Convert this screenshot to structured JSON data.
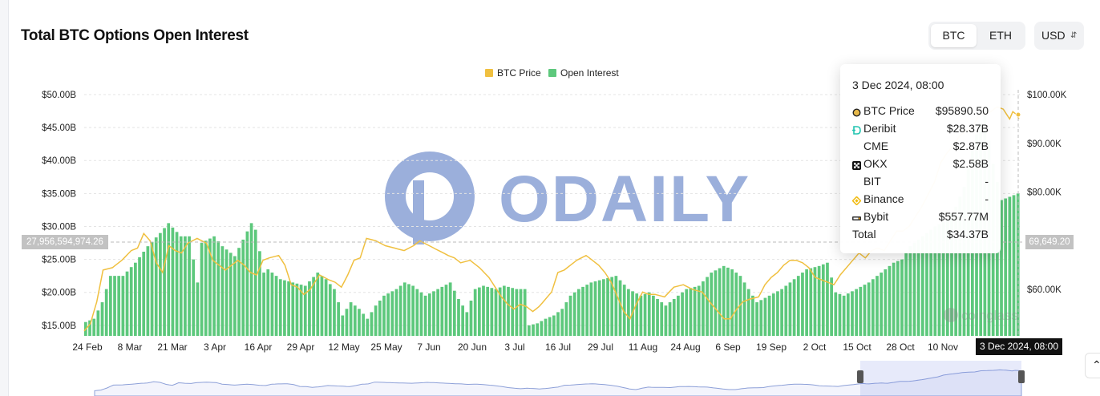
{
  "header": {
    "title": "Total BTC Options Open Interest"
  },
  "toggle": {
    "options": [
      "BTC",
      "ETH"
    ],
    "active": "BTC"
  },
  "currency": {
    "value": "USD"
  },
  "legend": [
    {
      "label": "BTC Price",
      "color": "#f0c040"
    },
    {
      "label": "Open Interest",
      "color": "#5dc87c"
    }
  ],
  "watermark": {
    "brand": "ODAILY",
    "source": "coinglass"
  },
  "crosshair": {
    "left_value": "27,956,594,974.26",
    "right_value": "69,649.20",
    "date_label": "3 Dec 2024, 08:00"
  },
  "tooltip": {
    "date": "3 Dec 2024, 08:00",
    "rows": [
      {
        "icon": "btc-dot-icon",
        "label": "BTC Price",
        "value": "$95890.50"
      },
      {
        "icon": "deribit-icon",
        "label": "Deribit",
        "value": "$28.37B"
      },
      {
        "icon": "",
        "label": "CME",
        "value": "$2.87B"
      },
      {
        "icon": "okx-icon",
        "label": "OKX",
        "value": "$2.58B"
      },
      {
        "icon": "",
        "label": "BIT",
        "value": "-"
      },
      {
        "icon": "binance-icon",
        "label": "Binance",
        "value": "-"
      },
      {
        "icon": "bybit-icon",
        "label": "Bybit",
        "value": "$557.77M"
      },
      {
        "icon": "",
        "label": "Total",
        "value": "$34.37B"
      }
    ]
  },
  "chart_data": {
    "type": "bar",
    "title": "Total BTC Options Open Interest",
    "x_tick_labels": [
      "24 Feb",
      "8 Mar",
      "21 Mar",
      "3 Apr",
      "16 Apr",
      "29 Apr",
      "12 May",
      "25 May",
      "7 Jun",
      "20 Jun",
      "3 Jul",
      "16 Jul",
      "29 Jul",
      "11 Aug",
      "24 Aug",
      "6 Sep",
      "19 Sep",
      "2 Oct",
      "15 Oct",
      "28 Oct",
      "10 Nov",
      "3 Dec 2024, 08:00"
    ],
    "y_left": {
      "ticks": [
        "$15.00B",
        "$20.00B",
        "$25.00B",
        "$30.00B",
        "$35.00B",
        "$40.00B",
        "$45.00B",
        "$50.00B"
      ],
      "values": [
        15,
        20,
        25,
        30,
        35,
        40,
        45,
        50
      ],
      "unit": "B USD"
    },
    "y_right": {
      "ticks": [
        "$60.00K",
        "$70.00K",
        "$80.00K",
        "$90.00K",
        "$100.00K"
      ],
      "values": [
        60,
        70,
        80,
        90,
        100
      ],
      "unit": "K USD"
    },
    "grid": "horizontal dashed",
    "legend_position": "top-center",
    "series": [
      {
        "name": "Open Interest",
        "kind": "bar",
        "axis": "left",
        "unit": "B USD",
        "keypoints": [
          [
            0,
            15.5
          ],
          [
            2,
            16.0
          ],
          [
            4,
            18.5
          ],
          [
            6,
            22.5
          ],
          [
            9,
            22.5
          ],
          [
            12,
            24.5
          ],
          [
            15,
            27.0
          ],
          [
            18,
            29.0
          ],
          [
            20,
            30.5
          ],
          [
            23,
            28.5
          ],
          [
            25,
            28.5
          ],
          [
            27,
            21.5
          ],
          [
            28,
            27.5
          ],
          [
            31,
            28.5
          ],
          [
            33,
            27.0
          ],
          [
            36,
            25.5
          ],
          [
            38,
            28.0
          ],
          [
            40,
            30.5
          ],
          [
            41,
            29.5
          ],
          [
            43,
            23.0
          ],
          [
            44,
            23.5
          ],
          [
            47,
            22.0
          ],
          [
            50,
            21.5
          ],
          [
            53,
            21.0
          ],
          [
            56,
            23.0
          ],
          [
            58,
            22.0
          ],
          [
            60,
            20.5
          ],
          [
            62,
            16.5
          ],
          [
            64,
            18.5
          ],
          [
            66,
            17.5
          ],
          [
            68,
            16.0
          ],
          [
            70,
            18.0
          ],
          [
            72,
            19.5
          ],
          [
            75,
            20.5
          ],
          [
            77,
            21.5
          ],
          [
            79,
            21.0
          ],
          [
            82,
            19.5
          ],
          [
            85,
            20.5
          ],
          [
            88,
            21.5
          ],
          [
            90,
            19.0
          ],
          [
            92,
            17.0
          ],
          [
            94,
            20.5
          ],
          [
            96,
            21.0
          ],
          [
            99,
            20.5
          ],
          [
            101,
            21.0
          ],
          [
            104,
            20.5
          ],
          [
            106,
            20.5
          ],
          [
            107,
            15.0
          ],
          [
            109,
            15.3
          ],
          [
            111,
            16.0
          ],
          [
            113,
            16.5
          ],
          [
            115,
            17.5
          ],
          [
            117,
            19.5
          ],
          [
            119,
            20.5
          ],
          [
            122,
            21.5
          ],
          [
            125,
            22.0
          ],
          [
            128,
            22.5
          ],
          [
            131,
            20.5
          ],
          [
            134,
            19.5
          ],
          [
            136,
            20.0
          ],
          [
            138,
            19.0
          ],
          [
            140,
            18.0
          ],
          [
            142,
            19.0
          ],
          [
            145,
            20.5
          ],
          [
            148,
            21.0
          ],
          [
            151,
            23.0
          ],
          [
            154,
            24.0
          ],
          [
            156,
            23.5
          ],
          [
            158,
            22.5
          ],
          [
            160,
            20.5
          ],
          [
            162,
            18.5
          ],
          [
            165,
            19.5
          ],
          [
            168,
            20.5
          ],
          [
            171,
            22.0
          ],
          [
            174,
            23.5
          ],
          [
            177,
            24.0
          ],
          [
            179,
            24.5
          ],
          [
            181,
            20.0
          ],
          [
            183,
            19.5
          ],
          [
            186,
            20.5
          ],
          [
            189,
            21.5
          ],
          [
            192,
            23.0
          ],
          [
            195,
            24.5
          ],
          [
            197,
            25.0
          ],
          [
            199,
            27.0
          ],
          [
            202,
            28.5
          ],
          [
            205,
            30.0
          ],
          [
            208,
            31.0
          ],
          [
            210,
            33.0
          ],
          [
            212,
            36.0
          ],
          [
            214,
            42.0
          ],
          [
            215,
            44.0
          ],
          [
            217,
            47.5
          ],
          [
            218,
            43.0
          ],
          [
            219,
            39.5
          ],
          [
            221,
            34.0
          ],
          [
            223,
            34.5
          ],
          [
            225,
            35.0
          ]
        ]
      },
      {
        "name": "BTC Price",
        "kind": "line",
        "axis": "right",
        "unit": "K USD",
        "keypoints": [
          [
            0,
            51.5
          ],
          [
            2,
            53.0
          ],
          [
            4,
            57.5
          ],
          [
            6,
            64.0
          ],
          [
            9,
            64.5
          ],
          [
            12,
            66.0
          ],
          [
            15,
            68.0
          ],
          [
            17,
            68.5
          ],
          [
            19,
            71.5
          ],
          [
            21,
            70.0
          ],
          [
            23,
            65.5
          ],
          [
            25,
            63.5
          ],
          [
            27,
            69.0
          ],
          [
            29,
            68.0
          ],
          [
            31,
            67.5
          ],
          [
            33,
            69.5
          ],
          [
            36,
            70.5
          ],
          [
            39,
            69.5
          ],
          [
            41,
            66.0
          ],
          [
            43,
            65.0
          ],
          [
            45,
            64.0
          ],
          [
            47,
            65.0
          ],
          [
            49,
            66.0
          ],
          [
            51,
            65.0
          ],
          [
            53,
            63.5
          ],
          [
            55,
            63.0
          ],
          [
            57,
            66.0
          ],
          [
            59,
            66.5
          ],
          [
            62,
            67.0
          ],
          [
            64,
            65.0
          ],
          [
            66,
            61.0
          ],
          [
            68,
            60.5
          ],
          [
            70,
            59.0
          ],
          [
            72,
            60.0
          ],
          [
            75,
            63.0
          ],
          [
            78,
            62.0
          ],
          [
            80,
            61.5
          ],
          [
            82,
            60.5
          ],
          [
            84,
            63.0
          ],
          [
            86,
            66.0
          ],
          [
            88,
            66.5
          ],
          [
            90,
            70.5
          ],
          [
            93,
            70.0
          ],
          [
            96,
            69.0
          ],
          [
            99,
            68.5
          ],
          [
            102,
            68.0
          ],
          [
            105,
            69.0
          ],
          [
            107,
            70.0
          ],
          [
            110,
            69.0
          ],
          [
            113,
            68.0
          ],
          [
            116,
            67.0
          ],
          [
            118,
            66.5
          ],
          [
            120,
            65.5
          ],
          [
            123,
            66.0
          ],
          [
            126,
            64.5
          ],
          [
            129,
            62.5
          ],
          [
            131,
            60.5
          ],
          [
            133,
            58.5
          ],
          [
            135,
            57.0
          ],
          [
            137,
            56.0
          ],
          [
            139,
            57.0
          ],
          [
            141,
            56.5
          ],
          [
            143,
            55.5
          ],
          [
            145,
            56.5
          ],
          [
            147,
            58.0
          ],
          [
            149,
            59.5
          ],
          [
            151,
            63.5
          ],
          [
            153,
            64.0
          ],
          [
            155,
            65.0
          ],
          [
            157,
            66.0
          ],
          [
            160,
            67.0
          ],
          [
            162,
            66.0
          ],
          [
            164,
            65.0
          ],
          [
            166,
            63.5
          ],
          [
            168,
            61.5
          ],
          [
            170,
            58.5
          ],
          [
            172,
            55.5
          ],
          [
            174,
            54.0
          ],
          [
            176,
            57.0
          ],
          [
            178,
            59.5
          ],
          [
            180,
            59.0
          ],
          [
            182,
            59.0
          ],
          [
            185,
            58.5
          ],
          [
            188,
            60.5
          ],
          [
            191,
            61.0
          ],
          [
            194,
            60.0
          ],
          [
            197,
            59.5
          ],
          [
            200,
            57.0
          ],
          [
            202,
            55.5
          ],
          [
            204,
            54.0
          ],
          [
            206,
            54.0
          ],
          [
            208,
            56.0
          ],
          [
            210,
            57.5
          ],
          [
            212,
            58.0
          ],
          [
            215,
            58.5
          ],
          [
            217,
            61.0
          ],
          [
            219,
            62.5
          ],
          [
            221,
            63.5
          ],
          [
            223,
            65.0
          ],
          [
            225,
            66.0
          ],
          [
            227,
            66.0
          ],
          [
            229,
            65.5
          ],
          [
            231,
            64.5
          ],
          [
            233,
            62.5
          ],
          [
            235,
            62.0
          ],
          [
            237,
            61.5
          ],
          [
            239,
            61.0
          ],
          [
            241,
            63.0
          ],
          [
            243,
            64.5
          ],
          [
            245,
            66.0
          ],
          [
            247,
            67.5
          ],
          [
            249,
            66.5
          ],
          [
            251,
            68.0
          ],
          [
            253,
            68.5
          ],
          [
            255,
            68.0
          ],
          [
            257,
            70.0
          ],
          [
            259,
            72.0
          ],
          [
            261,
            72.0
          ],
          [
            263,
            73.0
          ],
          [
            265,
            75.0
          ],
          [
            267,
            77.0
          ],
          [
            269,
            79.5
          ],
          [
            271,
            82.0
          ],
          [
            273,
            86.0
          ],
          [
            275,
            88.0
          ],
          [
            277,
            89.5
          ],
          [
            279,
            91.5
          ],
          [
            281,
            92.5
          ],
          [
            283,
            93.0
          ],
          [
            285,
            95.5
          ],
          [
            287,
            96.0
          ],
          [
            289,
            96.5
          ],
          [
            291,
            97.5
          ],
          [
            293,
            97.0
          ],
          [
            295,
            95.0
          ],
          [
            296,
            96.5
          ],
          [
            297,
            96.0
          ],
          [
            298,
            95.0
          ]
        ]
      }
    ]
  }
}
